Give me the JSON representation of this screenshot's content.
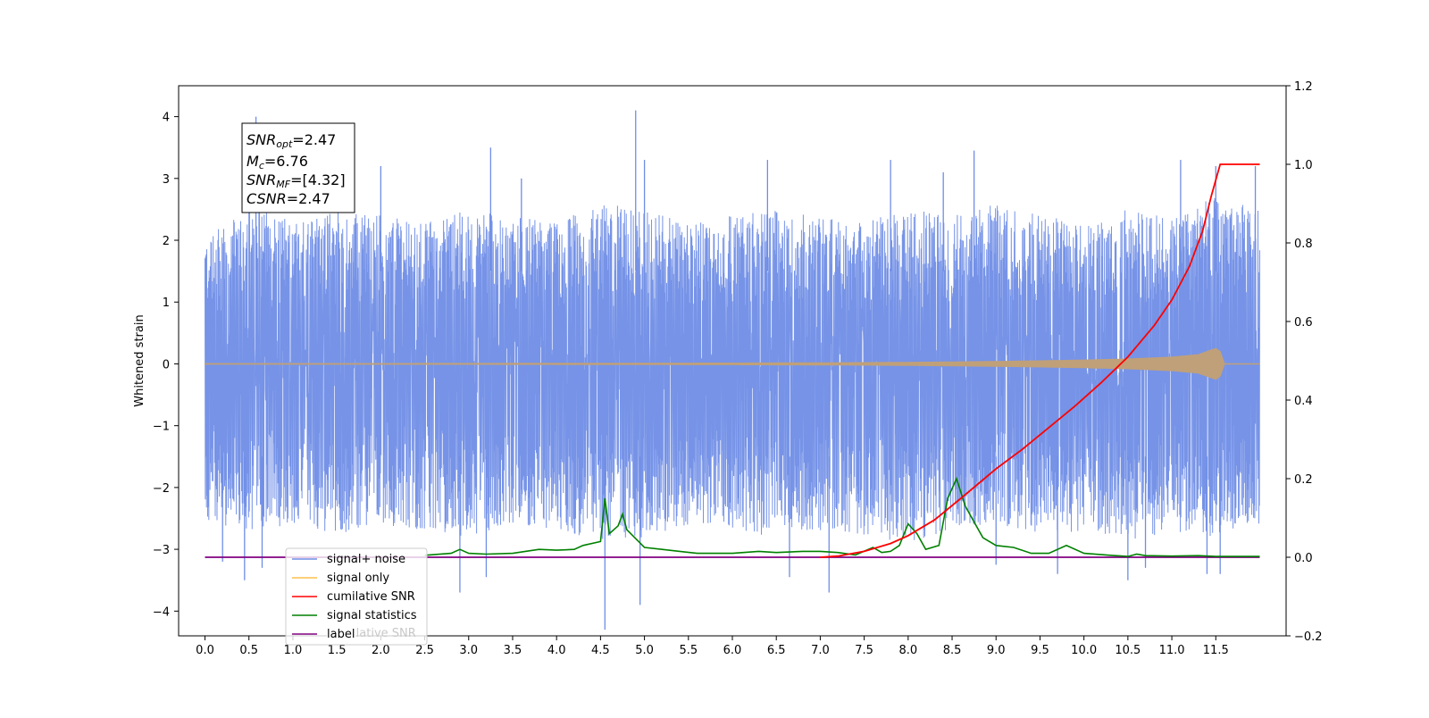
{
  "chart_data": {
    "type": "line",
    "ylabel": "Whitened strain",
    "x_ticks": [
      "0.0",
      "0.5",
      "1.0",
      "1.5",
      "2.0",
      "2.5",
      "3.0",
      "3.5",
      "4.0",
      "4.5",
      "5.0",
      "5.5",
      "6.0",
      "6.5",
      "7.0",
      "7.5",
      "8.0",
      "8.5",
      "9.0",
      "9.5",
      "10.0",
      "10.5",
      "11.0",
      "11.5"
    ],
    "y_ticks": [
      "4",
      "3",
      "2",
      "1",
      "0",
      "−1",
      "−2",
      "−3",
      "−4"
    ],
    "y2_ticks": [
      "1.2",
      "1.0",
      "0.8",
      "0.6",
      "0.4",
      "0.2",
      "0.0",
      "−0.2"
    ],
    "xlim": [
      -0.3,
      12.3
    ],
    "ylim": [
      -4.4,
      4.5
    ],
    "y2lim": [
      -0.2,
      1.2
    ],
    "info_box": {
      "snr_opt": {
        "main": "SNR",
        "sub": "opt",
        "value": "=2.47"
      },
      "mc": {
        "main": "M",
        "sub": "c",
        "value": "=6.76"
      },
      "snr_mf": {
        "main": "SNR",
        "sub": "MF",
        "value": "=[4.32]"
      },
      "csnr": {
        "main": "CSNR",
        "value": "=2.47"
      }
    },
    "legend": {
      "entries": [
        "signal+ noise",
        "signal only",
        "cumilative SNR",
        "signal statistics",
        "label"
      ],
      "ghost_text": "cumilative SNR"
    },
    "series": [
      {
        "name": "signal+ noise",
        "axis": "left",
        "color": "#6f8de6",
        "x_range": [
          0.0,
          12.0
        ],
        "envelope_upper": [
          2.0,
          2.6,
          2.3,
          2.5,
          2.4,
          2.3,
          2.5,
          2.4,
          2.3,
          2.6,
          2.5,
          2.3,
          2.4,
          2.5,
          2.4,
          2.3,
          2.5,
          2.4,
          2.6,
          2.4,
          2.3,
          2.5,
          2.4,
          2.7,
          2.5
        ],
        "envelope_lower": [
          -2.6,
          -2.7,
          -2.6,
          -2.8,
          -2.6,
          -2.7,
          -2.8,
          -2.6,
          -2.7,
          -2.9,
          -2.8,
          -2.6,
          -2.7,
          -2.8,
          -2.7,
          -2.8,
          -2.9,
          -2.7,
          -2.6,
          -2.8,
          -2.7,
          -2.9,
          -2.7,
          -2.8,
          -2.6
        ],
        "spikes": [
          {
            "x": 0.58,
            "y": 4.0
          },
          {
            "x": 0.65,
            "y": -3.3
          },
          {
            "x": 0.2,
            "y": -3.2
          },
          {
            "x": 0.45,
            "y": -3.5
          },
          {
            "x": 2.0,
            "y": 3.2
          },
          {
            "x": 2.9,
            "y": -3.7
          },
          {
            "x": 3.25,
            "y": 3.5
          },
          {
            "x": 3.2,
            "y": -3.45
          },
          {
            "x": 4.9,
            "y": 4.1
          },
          {
            "x": 4.95,
            "y": -3.9
          },
          {
            "x": 4.55,
            "y": -4.3
          },
          {
            "x": 5.0,
            "y": 3.3
          },
          {
            "x": 6.4,
            "y": 3.3
          },
          {
            "x": 6.65,
            "y": -3.45
          },
          {
            "x": 7.1,
            "y": -3.7
          },
          {
            "x": 7.8,
            "y": 3.3
          },
          {
            "x": 8.4,
            "y": 3.1
          },
          {
            "x": 8.75,
            "y": 3.45
          },
          {
            "x": 9.0,
            "y": -3.25
          },
          {
            "x": 9.7,
            "y": -3.4
          },
          {
            "x": 10.5,
            "y": -3.5
          },
          {
            "x": 10.7,
            "y": -3.3
          },
          {
            "x": 11.4,
            "y": -3.4
          },
          {
            "x": 11.1,
            "y": 3.3
          },
          {
            "x": 11.5,
            "y": 3.2
          },
          {
            "x": 11.95,
            "y": 3.2
          },
          {
            "x": 11.55,
            "y": -3.4
          },
          {
            "x": 3.6,
            "y": 3.0
          }
        ]
      },
      {
        "name": "signal only",
        "axis": "left",
        "color": "#c0a079",
        "x": [
          0,
          1,
          2,
          3,
          4,
          5,
          6,
          7,
          7.5,
          8,
          8.5,
          9,
          9.5,
          10,
          10.5,
          11,
          11.3,
          11.5,
          11.55,
          11.6,
          12.0
        ],
        "amplitude": [
          0.005,
          0.006,
          0.007,
          0.008,
          0.01,
          0.012,
          0.014,
          0.018,
          0.021,
          0.026,
          0.032,
          0.04,
          0.05,
          0.063,
          0.08,
          0.11,
          0.15,
          0.25,
          0.2,
          0.0,
          0.0
        ]
      },
      {
        "name": "cumilative SNR",
        "axis": "right",
        "color": "#ff0000",
        "x": [
          7.0,
          7.2,
          7.5,
          7.8,
          8.0,
          8.3,
          8.6,
          9.0,
          9.3,
          9.6,
          9.9,
          10.2,
          10.5,
          10.8,
          11.0,
          11.2,
          11.35,
          11.45,
          11.55,
          11.6,
          11.8,
          12.0
        ],
        "values": [
          0.0,
          0.003,
          0.015,
          0.035,
          0.055,
          0.095,
          0.15,
          0.225,
          0.275,
          0.33,
          0.385,
          0.445,
          0.51,
          0.59,
          0.655,
          0.74,
          0.83,
          0.92,
          1.0,
          1.0,
          1.0,
          1.0
        ]
      },
      {
        "name": "signal statistics",
        "axis": "right",
        "color": "#008000",
        "x": [
          2.5,
          2.8,
          2.9,
          3.0,
          3.2,
          3.5,
          3.8,
          4.0,
          4.2,
          4.3,
          4.5,
          4.55,
          4.6,
          4.7,
          4.75,
          4.8,
          5.0,
          5.2,
          5.4,
          5.6,
          6.0,
          6.3,
          6.5,
          6.8,
          7.0,
          7.2,
          7.4,
          7.6,
          7.7,
          7.8,
          7.9,
          8.0,
          8.1,
          8.2,
          8.35,
          8.45,
          8.55,
          8.65,
          8.75,
          8.85,
          9.0,
          9.2,
          9.4,
          9.6,
          9.8,
          10.0,
          10.3,
          10.5,
          10.6,
          10.7,
          11.0,
          11.3,
          11.5,
          11.8,
          12.0
        ],
        "values": [
          0.005,
          0.01,
          0.02,
          0.01,
          0.008,
          0.01,
          0.02,
          0.018,
          0.02,
          0.03,
          0.04,
          0.15,
          0.06,
          0.08,
          0.11,
          0.07,
          0.025,
          0.02,
          0.015,
          0.01,
          0.01,
          0.015,
          0.012,
          0.015,
          0.015,
          0.012,
          0.006,
          0.025,
          0.012,
          0.015,
          0.03,
          0.085,
          0.06,
          0.02,
          0.03,
          0.15,
          0.2,
          0.13,
          0.09,
          0.05,
          0.03,
          0.025,
          0.01,
          0.01,
          0.03,
          0.01,
          0.005,
          0.002,
          0.008,
          0.004,
          0.003,
          0.004,
          0.002,
          0.002,
          0.002
        ]
      },
      {
        "name": "label",
        "axis": "right",
        "color": "#800080",
        "x": [
          0.0,
          12.0
        ],
        "values": [
          0.0,
          0.0
        ]
      }
    ]
  }
}
